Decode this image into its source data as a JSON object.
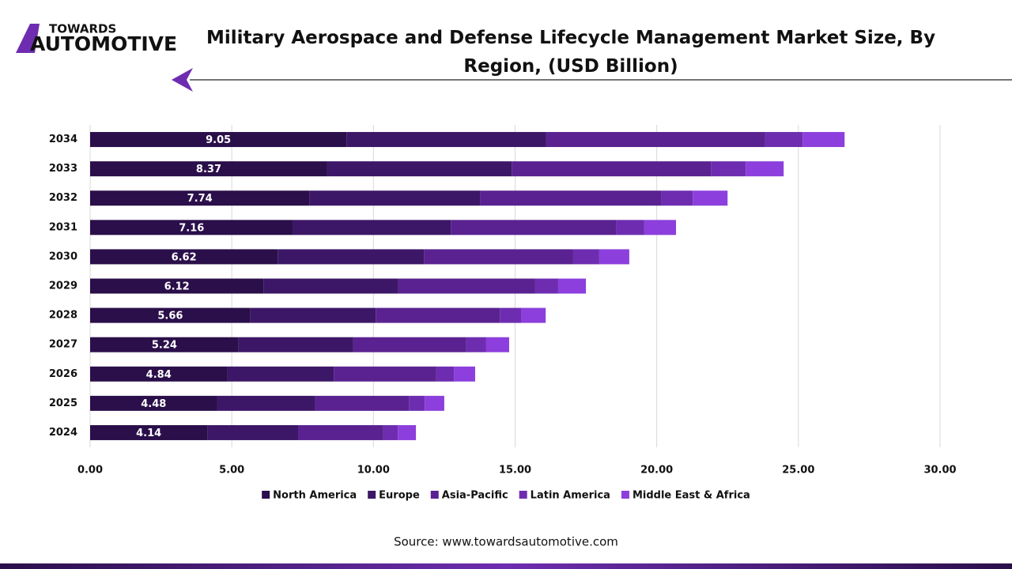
{
  "logo": {
    "line1": "TOWARDS",
    "line2": "AUTOMOTIVE"
  },
  "source": "Source: www.towardsautomotive.com",
  "chart_data": {
    "type": "stacked-bar-horizontal",
    "title": "Military Aerospace and Defense Lifecycle Management Market Size, By Region, (USD Billion)",
    "categories": [
      "2034",
      "2033",
      "2032",
      "2031",
      "2030",
      "2029",
      "2028",
      "2027",
      "2026",
      "2025",
      "2024"
    ],
    "series": [
      {
        "name": "North America",
        "color": "#2a0f4a",
        "data_labels": true,
        "values": [
          9.05,
          8.37,
          7.74,
          7.16,
          6.62,
          6.12,
          5.66,
          5.24,
          4.84,
          4.48,
          4.14
        ]
      },
      {
        "name": "Europe",
        "color": "#3d1767",
        "values": [
          7.05,
          6.51,
          6.02,
          5.57,
          5.16,
          4.76,
          4.42,
          4.05,
          3.76,
          3.47,
          3.2
        ]
      },
      {
        "name": "Asia-Pacific",
        "color": "#5a2290",
        "values": [
          7.73,
          7.03,
          6.39,
          5.83,
          5.27,
          4.83,
          4.38,
          3.99,
          3.62,
          3.3,
          3.01
        ]
      },
      {
        "name": "Latin America",
        "color": "#6e2db0",
        "values": [
          1.32,
          1.23,
          1.12,
          1.0,
          0.92,
          0.81,
          0.75,
          0.7,
          0.62,
          0.56,
          0.51
        ]
      },
      {
        "name": "Middle East & Africa",
        "color": "#8c3fdc",
        "values": [
          1.48,
          1.34,
          1.23,
          1.12,
          1.06,
          0.98,
          0.87,
          0.81,
          0.75,
          0.69,
          0.64
        ]
      }
    ],
    "xlim": [
      0,
      30
    ],
    "xticks": [
      {
        "value": 0,
        "label": "0.00"
      },
      {
        "value": 5,
        "label": "5.00"
      },
      {
        "value": 10,
        "label": "10.00"
      },
      {
        "value": 15,
        "label": "15.00"
      },
      {
        "value": 20,
        "label": "20.00"
      },
      {
        "value": 25,
        "label": "25.00"
      },
      {
        "value": 30,
        "label": "30.00"
      }
    ],
    "grid": true,
    "legend": "bottom"
  }
}
